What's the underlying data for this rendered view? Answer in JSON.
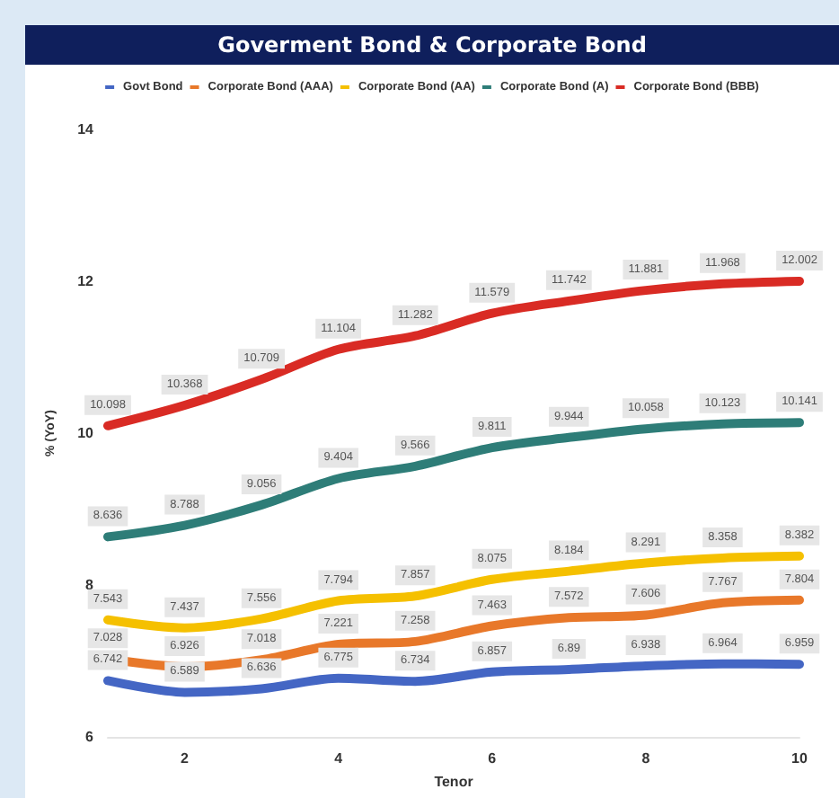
{
  "chart_data": {
    "type": "line",
    "title": "Goverment Bond & Corporate Bond",
    "xlabel": "Tenor",
    "ylabel": "% (YoY)",
    "x": [
      1,
      2,
      3,
      4,
      5,
      6,
      7,
      8,
      9,
      10
    ],
    "series": [
      {
        "name": "Govt Bond",
        "color": "#4466c4",
        "values": [
          6.742,
          6.589,
          6.636,
          6.775,
          6.734,
          6.857,
          6.89,
          6.938,
          6.964,
          6.959
        ]
      },
      {
        "name": "Corporate Bond (AAA)",
        "color": "#e8782a",
        "values": [
          7.028,
          6.926,
          7.018,
          7.221,
          7.258,
          7.463,
          7.572,
          7.606,
          7.767,
          7.804
        ]
      },
      {
        "name": "Corporate Bond (AA)",
        "color": "#f5c000",
        "values": [
          7.543,
          7.437,
          7.556,
          7.794,
          7.857,
          8.075,
          8.184,
          8.291,
          8.358,
          8.382
        ]
      },
      {
        "name": "Corporate Bond (A)",
        "color": "#2e7d78",
        "values": [
          8.636,
          8.788,
          9.056,
          9.404,
          9.566,
          9.811,
          9.944,
          10.058,
          10.123,
          10.141
        ]
      },
      {
        "name": "Corporate Bond (BBB)",
        "color": "#d92b24",
        "values": [
          10.098,
          10.368,
          10.709,
          11.104,
          11.282,
          11.579,
          11.742,
          11.881,
          11.968,
          12.002
        ]
      }
    ],
    "xlim": [
      1,
      10
    ],
    "xticks": [
      2,
      4,
      6,
      8,
      10
    ],
    "ylim": [
      6,
      14
    ],
    "yticks": [
      6,
      8,
      10,
      12,
      14
    ],
    "grid": false,
    "legend": "top",
    "marker": "none",
    "line_style": "solid",
    "data_labels": true
  }
}
